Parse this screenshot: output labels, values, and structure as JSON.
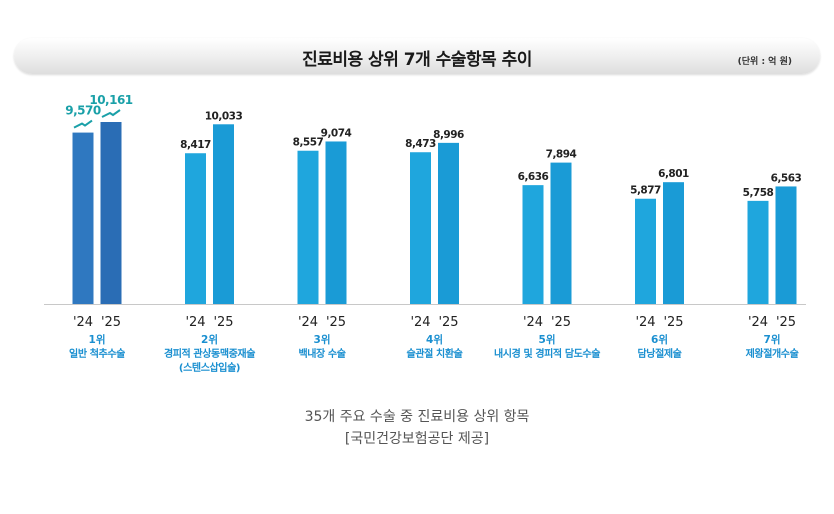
{
  "header": {
    "title": "진료비용 상위 7개 수술항목 추이",
    "unit": "(단위 : 억 원)"
  },
  "caption": {
    "line1": "35개 주요 수술 중 진료비용 상위 항목",
    "line2": "[국민건강보험공단 제공]"
  },
  "colors": {
    "rank1_2024": "#2f78c0",
    "rank1_2025": "#2a6db5",
    "other_2024": "#1fa6dd",
    "other_2025": "#1a9bd6",
    "rank_label": "#1a8fd0",
    "rank1_value": "#1aa0a8"
  },
  "chart_data": {
    "type": "bar",
    "title": "진료비용 상위 7개 수술항목 추이",
    "unit": "(단위 : 억 원)",
    "year_labels": [
      "'24",
      "'25"
    ],
    "categories": [
      {
        "rank": "1위",
        "name": [
          "일반 척추수술"
        ],
        "v2024": 9570,
        "v2025": 10161,
        "label2024": "9,570",
        "label2025": "10,161"
      },
      {
        "rank": "2위",
        "name": [
          "경피적 관상동맥중재술",
          "(스텐스삽입술)"
        ],
        "v2024": 8417,
        "v2025": 10033,
        "label2024": "8,417",
        "label2025": "10,033"
      },
      {
        "rank": "3위",
        "name": [
          "백내장 수술"
        ],
        "v2024": 8557,
        "v2025": 9074,
        "label2024": "8,557",
        "label2025": "9,074"
      },
      {
        "rank": "4위",
        "name": [
          "슬관절 치환술"
        ],
        "v2024": 8473,
        "v2025": 8996,
        "label2024": "8,473",
        "label2025": "8,996"
      },
      {
        "rank": "5위",
        "name": [
          "내시경 및 경피적 담도수술"
        ],
        "v2024": 6636,
        "v2025": 7894,
        "label2024": "6,636",
        "label2025": "7,894"
      },
      {
        "rank": "6위",
        "name": [
          "담낭절제술"
        ],
        "v2024": 5877,
        "v2025": 6801,
        "label2024": "5,877",
        "label2025": "6,801"
      },
      {
        "rank": "7위",
        "name": [
          "제왕절개수술"
        ],
        "v2024": 5758,
        "v2025": 6563,
        "label2024": "5,758",
        "label2025": "6,563"
      }
    ],
    "ylim": [
      0,
      10161
    ]
  }
}
